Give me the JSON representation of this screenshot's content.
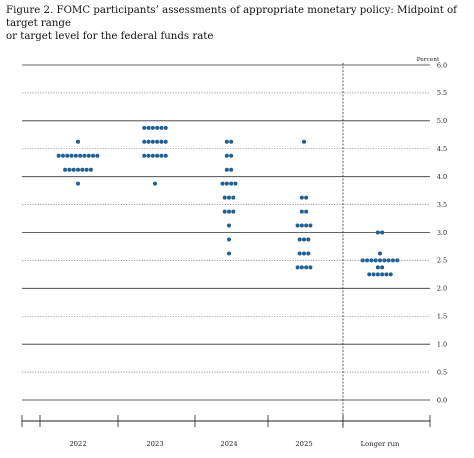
{
  "title": {
    "line1": "Figure 2.  FOMC participants’ assessments of appropriate monetary policy:  Midpoint of target range",
    "line2": "or target level for the federal funds rate"
  },
  "chart_data": {
    "type": "scatter",
    "title": "Figure 2.  FOMC participants’ assessments of appropriate monetary policy:  Midpoint of target range or target level for the federal funds rate",
    "xlabel": "",
    "ylabel": "Percent",
    "ylim": [
      0,
      6.0
    ],
    "y_ticks": [
      "0.0",
      "0.5",
      "1.0",
      "1.5",
      "2.0",
      "2.5",
      "3.0",
      "3.5",
      "4.0",
      "4.5",
      "5.0",
      "5.5",
      "6.0"
    ],
    "categories": [
      "2022",
      "2023",
      "2024",
      "2025",
      "Longer run"
    ],
    "grid": "solid lines at whole percents, dotted lines at half percents",
    "dot_color": "#1f5f94",
    "columns": [
      {
        "category": "2022",
        "points": [
          {
            "y": 4.625,
            "count": 1
          },
          {
            "y": 4.375,
            "count": 10
          },
          {
            "y": 4.125,
            "count": 7
          },
          {
            "y": 3.875,
            "count": 1
          }
        ]
      },
      {
        "category": "2023",
        "points": [
          {
            "y": 4.875,
            "count": 6
          },
          {
            "y": 4.625,
            "count": 6
          },
          {
            "y": 4.375,
            "count": 6
          },
          {
            "y": 3.875,
            "count": 1
          }
        ]
      },
      {
        "category": "2024",
        "points": [
          {
            "y": 4.625,
            "count": 2
          },
          {
            "y": 4.375,
            "count": 2
          },
          {
            "y": 4.125,
            "count": 2
          },
          {
            "y": 3.875,
            "count": 4
          },
          {
            "y": 3.625,
            "count": 3
          },
          {
            "y": 3.375,
            "count": 3
          },
          {
            "y": 3.125,
            "count": 1
          },
          {
            "y": 2.875,
            "count": 1
          },
          {
            "y": 2.625,
            "count": 1
          }
        ]
      },
      {
        "category": "2025",
        "points": [
          {
            "y": 4.625,
            "count": 1
          },
          {
            "y": 3.625,
            "count": 2
          },
          {
            "y": 3.375,
            "count": 2
          },
          {
            "y": 3.125,
            "count": 4
          },
          {
            "y": 2.875,
            "count": 3
          },
          {
            "y": 2.625,
            "count": 3
          },
          {
            "y": 2.375,
            "count": 4
          }
        ]
      },
      {
        "category": "Longer run",
        "points": [
          {
            "y": 3.0,
            "count": 2
          },
          {
            "y": 2.625,
            "count": 1
          },
          {
            "y": 2.5,
            "count": 9
          },
          {
            "y": 2.375,
            "count": 2
          },
          {
            "y": 2.25,
            "count": 6
          }
        ]
      }
    ]
  }
}
